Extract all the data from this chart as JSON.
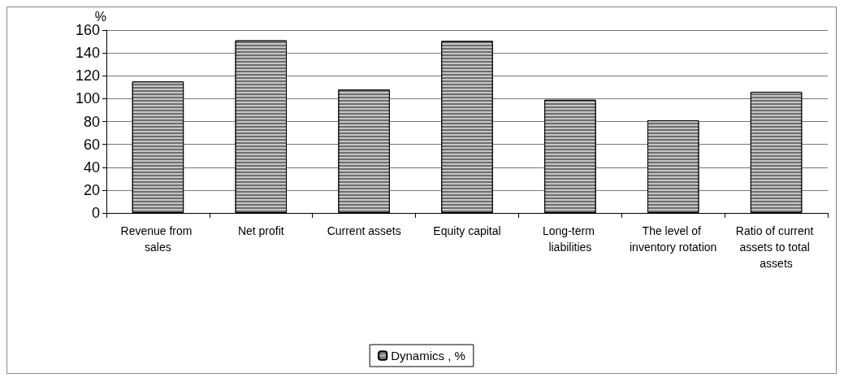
{
  "chart_data": {
    "type": "bar",
    "ylabel": "%",
    "categories": [
      "Revenue from sales",
      "Net profit",
      "Current assets",
      "Equity capital",
      "Long-term liabilities",
      "The level of inventory rotation",
      "Ratio of current assets to total assets"
    ],
    "series": [
      {
        "name": "Dynamics , %",
        "color": "#6e6e6e",
        "values": [
          115,
          151,
          108,
          150.5,
          99,
          81,
          106
        ]
      }
    ],
    "ylim": [
      0,
      160
    ],
    "yticks": [
      0,
      20,
      40,
      60,
      80,
      100,
      120,
      140,
      160
    ],
    "grid": "y",
    "legend": "bottom"
  }
}
